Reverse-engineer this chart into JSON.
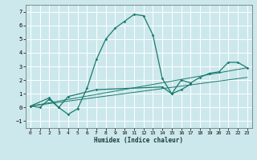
{
  "xlabel": "Humidex (Indice chaleur)",
  "bg_color": "#cce8ec",
  "grid_color": "#ffffff",
  "line_color": "#1a7a6e",
  "xlim": [
    -0.5,
    23.5
  ],
  "ylim": [
    -1.5,
    7.5
  ],
  "xticks": [
    0,
    1,
    2,
    3,
    4,
    5,
    6,
    7,
    8,
    9,
    10,
    11,
    12,
    13,
    14,
    15,
    16,
    17,
    18,
    19,
    20,
    21,
    22,
    23
  ],
  "yticks": [
    -1,
    0,
    1,
    2,
    3,
    4,
    5,
    6,
    7
  ],
  "series": [
    {
      "x": [
        0,
        1,
        2,
        3,
        4,
        5,
        6,
        7,
        8,
        9,
        10,
        11,
        12,
        13,
        14,
        15,
        16,
        17
      ],
      "y": [
        0.1,
        0.0,
        0.6,
        0.0,
        -0.5,
        -0.1,
        1.4,
        3.5,
        5.0,
        5.8,
        6.3,
        6.8,
        6.7,
        5.3,
        2.1,
        1.0,
        1.3,
        1.7
      ]
    },
    {
      "x": [
        0,
        2,
        3,
        4,
        7,
        14,
        15,
        16,
        17,
        18,
        19,
        20,
        21,
        22,
        23
      ],
      "y": [
        0.1,
        0.7,
        0.0,
        0.8,
        1.3,
        1.5,
        1.0,
        2.0,
        1.8,
        2.2,
        2.5,
        2.6,
        3.3,
        3.3,
        2.9
      ]
    },
    {
      "x": [
        0,
        23
      ],
      "y": [
        0.1,
        2.2
      ]
    },
    {
      "x": [
        0,
        23
      ],
      "y": [
        0.1,
        2.9
      ]
    }
  ]
}
